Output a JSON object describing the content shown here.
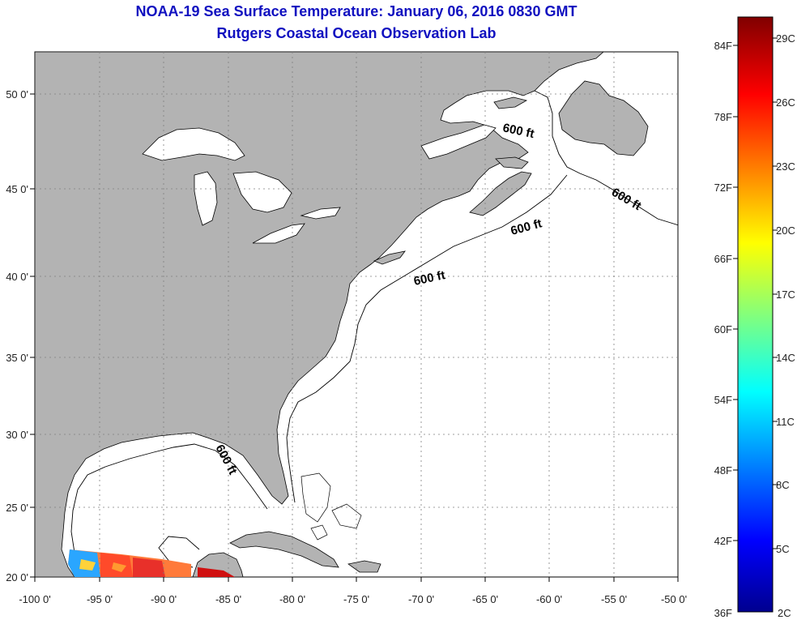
{
  "title_line1": "NOAA-19 Sea Surface Temperature:  January 06, 2016 0830 GMT",
  "title_line2": "Rutgers Coastal Ocean Observation Lab",
  "map": {
    "lon_ticks": [
      "-100 0'",
      "-95 0'",
      "-90 0'",
      "-85 0'",
      "-80 0'",
      "-75 0'",
      "-70 0'",
      "-65 0'",
      "-60 0'",
      "-55 0'",
      "-50 0'"
    ],
    "lat_ticks": [
      "50 0'",
      "45 0'",
      "40 0'",
      "35 0'",
      "30 0'",
      "25 0'",
      "20 0'"
    ],
    "contour_label": "600 ft",
    "colors": {
      "land": "#b3b3b3",
      "water": "#ffffff",
      "grid": "#808080",
      "coast": "#000000"
    }
  },
  "colorbar": {
    "fahrenheit_labels": [
      "84F",
      "78F",
      "72F",
      "66F",
      "60F",
      "54F",
      "48F",
      "42F",
      "36F"
    ],
    "celsius_labels": [
      "29C",
      "26C",
      "23C",
      "20C",
      "17C",
      "14C",
      "11C",
      "8C",
      "5C",
      "2C"
    ],
    "colormap": [
      "#00008f",
      "#0000ff",
      "#00ffff",
      "#ffff00",
      "#ff0000",
      "#800000"
    ]
  }
}
